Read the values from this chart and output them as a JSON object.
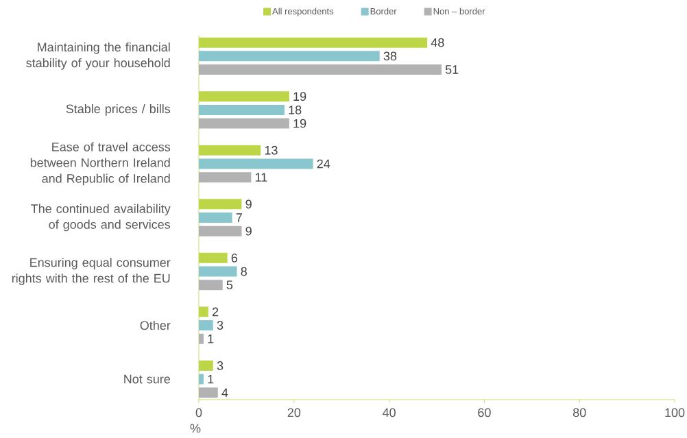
{
  "chart_data": {
    "type": "bar",
    "orientation": "horizontal",
    "categories": [
      "Maintaining the financial stability of your household",
      "Stable prices / bills",
      "Ease of travel access between Northern Ireland and Republic of Ireland",
      "The continued availability of goods and services",
      "Ensuring equal consumer rights with the rest of the EU",
      "Other",
      "Not sure"
    ],
    "series": [
      {
        "name": "All respondents",
        "color": "#bcd648",
        "values": [
          48,
          19,
          13,
          9,
          6,
          2,
          3
        ]
      },
      {
        "name": "Border",
        "color": "#8ac6cd",
        "values": [
          38,
          18,
          24,
          7,
          8,
          3,
          1
        ]
      },
      {
        "name": "Non – border",
        "color": "#b2b2b2",
        "values": [
          51,
          19,
          11,
          9,
          5,
          1,
          4
        ]
      }
    ],
    "xlabel": "%",
    "xlim": [
      0,
      100
    ],
    "xticks": [
      0,
      20,
      40,
      60,
      80,
      100
    ],
    "data_labels": true,
    "legend": "top"
  }
}
